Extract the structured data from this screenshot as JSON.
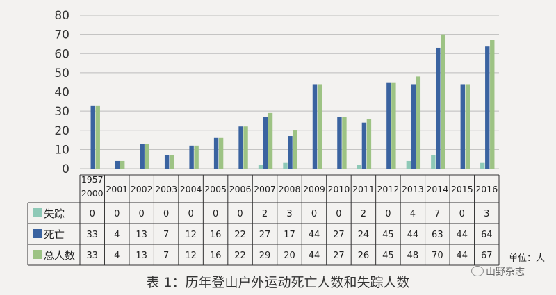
{
  "chart_data": {
    "type": "bar",
    "ylim": [
      0,
      80
    ],
    "yticks": [
      "0",
      "10",
      "20",
      "30",
      "40",
      "50",
      "60",
      "70",
      "80"
    ],
    "grid": true,
    "categories": [
      "1957\n-\n2000",
      "2001",
      "2002",
      "2003",
      "2004",
      "2005",
      "2006",
      "2007",
      "2008",
      "2009",
      "2010",
      "2011",
      "2012",
      "2013",
      "2014",
      "2015",
      "2016"
    ],
    "series": [
      {
        "name": "失踪",
        "color": "#8ec9b7",
        "values": [
          0,
          0,
          0,
          0,
          0,
          0,
          0,
          2,
          3,
          0,
          0,
          2,
          0,
          4,
          7,
          0,
          3
        ]
      },
      {
        "name": "死亡",
        "color": "#3a63a0",
        "values": [
          33,
          4,
          13,
          7,
          12,
          16,
          22,
          27,
          17,
          44,
          27,
          24,
          45,
          44,
          63,
          44,
          64
        ]
      },
      {
        "name": "总人数",
        "color": "#9dc384",
        "values": [
          33,
          4,
          13,
          7,
          12,
          16,
          22,
          29,
          20,
          44,
          27,
          26,
          45,
          48,
          70,
          44,
          67
        ]
      }
    ],
    "table_rows": [
      [
        "0",
        "0",
        "0",
        "0",
        "0",
        "0",
        "0",
        "2",
        "3",
        "0",
        "0",
        "2",
        "0",
        "4",
        "7",
        "0",
        "3"
      ],
      [
        "33",
        "4",
        "13",
        "7",
        "12",
        "16",
        "22",
        "27",
        "17",
        "44",
        "27",
        "24",
        "45",
        "44",
        "63",
        "44",
        "64"
      ],
      [
        "33",
        "4",
        "13",
        "7",
        "12",
        "16",
        "22",
        "29",
        "20",
        "44",
        "27",
        "26",
        "45",
        "48",
        "70",
        "44",
        "67"
      ]
    ],
    "unit_label": "单位：人"
  },
  "caption": "表 1：历年登山户外运动死亡人数和失踪人数",
  "watermark": "山野杂志"
}
